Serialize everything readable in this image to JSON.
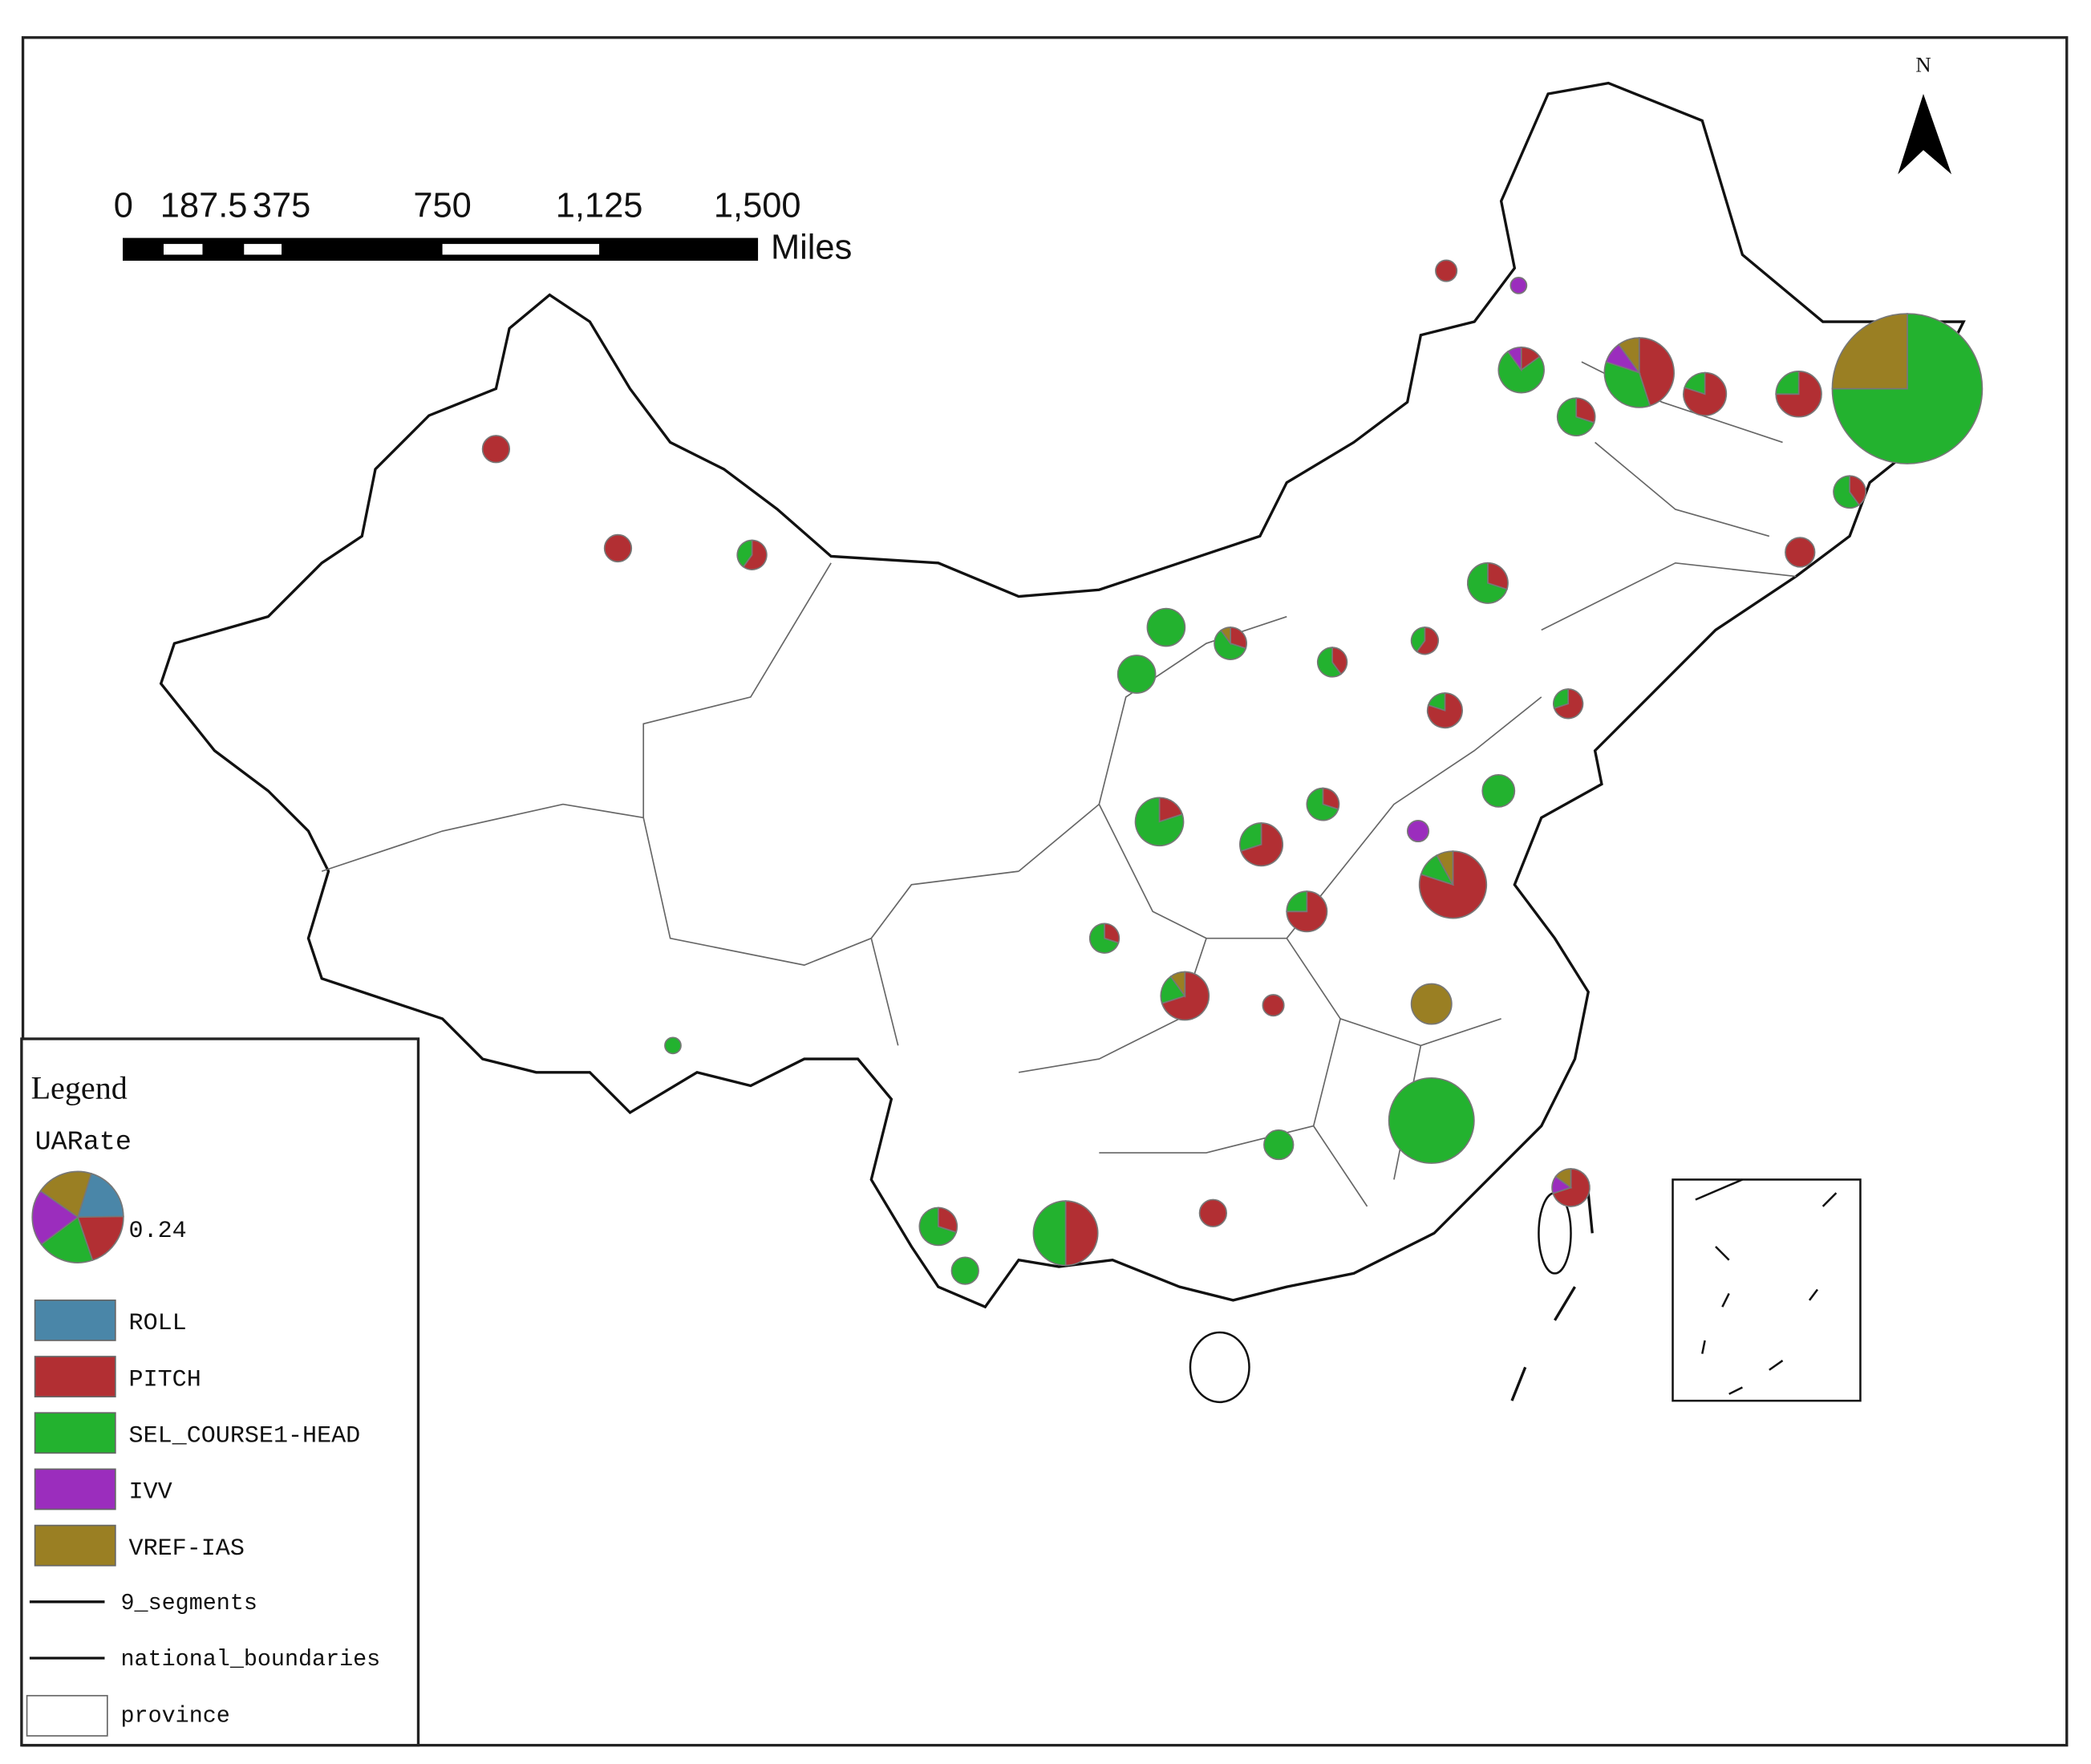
{
  "scale_bar": {
    "labels": [
      "0",
      "187.5",
      "375",
      "750",
      "1,125",
      "1,500"
    ],
    "unit": "Miles"
  },
  "north": "N",
  "legend": {
    "title": "Legend",
    "field": "UARate",
    "size": {
      "value": 0.24,
      "label": "0.24"
    },
    "categories": [
      {
        "name": "ROLL",
        "color": "#4a86a8"
      },
      {
        "name": "PITCH",
        "color": "#b22f33"
      },
      {
        "name": "SEL_COURSE1-HEAD",
        "color": "#23b22f"
      },
      {
        "name": "IVV",
        "color": "#9b2dbd"
      },
      {
        "name": "VREF-IAS",
        "color": "#9a7f23"
      }
    ],
    "lines": [
      "9_segments",
      "national_boundaries"
    ],
    "polygon": "province"
  },
  "sites": [
    {
      "size": 0.65,
      "shares": [
        0,
        0,
        75,
        0,
        25
      ]
    },
    {
      "size": 0.21,
      "shares": [
        0,
        0,
        100,
        0,
        0
      ]
    },
    {
      "size": 0.13,
      "shares": [
        0,
        80,
        12,
        0,
        8
      ]
    },
    {
      "size": 0.12,
      "shares": [
        0,
        50,
        50,
        0,
        0
      ]
    },
    {
      "size": 0.14,
      "shares": [
        0,
        45,
        35,
        10,
        10
      ]
    },
    {
      "size": 0.067,
      "shares": [
        0,
        70,
        20,
        0,
        10
      ]
    },
    {
      "size": 0.06,
      "shares": [
        0,
        15,
        75,
        10,
        0
      ]
    },
    {
      "size": 0.067,
      "shares": [
        0,
        20,
        80,
        0,
        0
      ]
    },
    {
      "size": 0.053,
      "shares": [
        0,
        80,
        20,
        0,
        0
      ]
    },
    {
      "size": 0.06,
      "shares": [
        0,
        75,
        25,
        0,
        0
      ]
    },
    {
      "size": 0.047,
      "shares": [
        0,
        0,
        0,
        0,
        100
      ]
    },
    {
      "size": 0.041,
      "shares": [
        0,
        0,
        100,
        0,
        0
      ]
    },
    {
      "size": 0.041,
      "shares": [
        0,
        0,
        100,
        0,
        0
      ]
    },
    {
      "size": 0.053,
      "shares": [
        0,
        70,
        30,
        0,
        0
      ]
    },
    {
      "size": 0.047,
      "shares": [
        0,
        75,
        25,
        0,
        0
      ]
    },
    {
      "size": 0.047,
      "shares": [
        0,
        30,
        70,
        0,
        0
      ]
    },
    {
      "size": 0.041,
      "shares": [
        0,
        30,
        70,
        0,
        0
      ]
    },
    {
      "size": 0.041,
      "shares": [
        0,
        30,
        70,
        0,
        0
      ]
    },
    {
      "size": 0.041,
      "shares": [
        0,
        70,
        0,
        15,
        15
      ]
    },
    {
      "size": 0.021,
      "shares": [
        0,
        100,
        0,
        0,
        0
      ]
    },
    {
      "size": 0.021,
      "shares": [
        0,
        100,
        0,
        0,
        0
      ]
    },
    {
      "size": 0.025,
      "shares": [
        0,
        60,
        40,
        0,
        0
      ]
    },
    {
      "size": 0.025,
      "shares": [
        0,
        0,
        100,
        0,
        0
      ]
    },
    {
      "size": 0.03,
      "shares": [
        0,
        0,
        100,
        0,
        0
      ]
    },
    {
      "size": 0.03,
      "shares": [
        0,
        40,
        60,
        0,
        0
      ]
    },
    {
      "size": 0.025,
      "shares": [
        0,
        100,
        0,
        0,
        0
      ]
    },
    {
      "size": 0.035,
      "shares": [
        0,
        80,
        20,
        0,
        0
      ]
    },
    {
      "size": 0.03,
      "shares": [
        0,
        30,
        70,
        0,
        0
      ]
    },
    {
      "size": 0.03,
      "shares": [
        0,
        30,
        60,
        0,
        10
      ]
    },
    {
      "size": 0.025,
      "shares": [
        0,
        30,
        70,
        0,
        0
      ]
    },
    {
      "size": 0.025,
      "shares": [
        0,
        70,
        30,
        0,
        0
      ]
    },
    {
      "size": 0.021,
      "shares": [
        0,
        0,
        100,
        0,
        0
      ]
    },
    {
      "size": 0.021,
      "shares": [
        0,
        100,
        0,
        0,
        0
      ]
    },
    {
      "size": 0.025,
      "shares": [
        0,
        40,
        60,
        0,
        0
      ]
    },
    {
      "size": 0.021,
      "shares": [
        0,
        60,
        40,
        0,
        0
      ]
    },
    {
      "size": 0.013,
      "shares": [
        0,
        0,
        0,
        100,
        0
      ]
    },
    {
      "size": 0.0075,
      "shares": [
        0,
        0,
        0,
        100,
        0
      ]
    },
    {
      "size": 0.013,
      "shares": [
        0,
        100,
        0,
        0,
        0
      ]
    },
    {
      "size": 0.0075,
      "shares": [
        0,
        0,
        100,
        0,
        0
      ]
    },
    {
      "size": 0.013,
      "shares": [
        0,
        100,
        0,
        0,
        0
      ]
    }
  ]
}
